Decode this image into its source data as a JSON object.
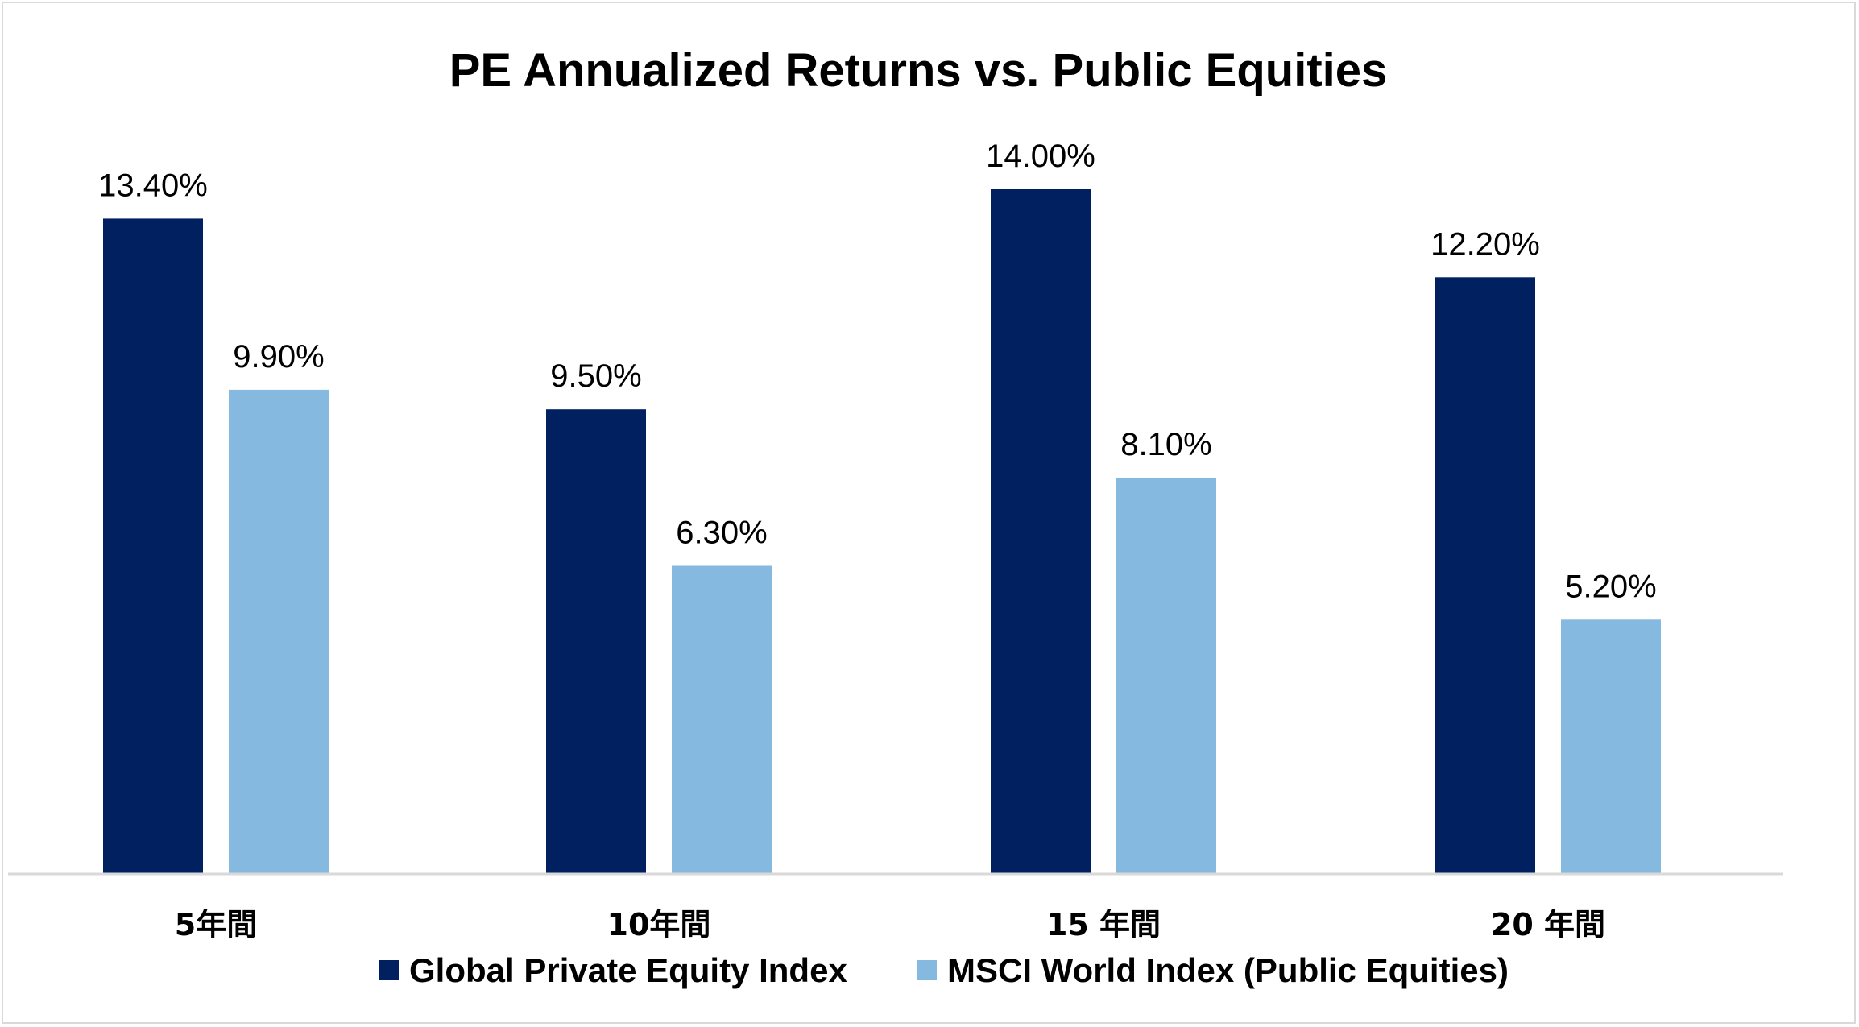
{
  "chart_data": {
    "type": "bar",
    "title": "PE Annualized Returns vs. Public Equities",
    "xlabel": "",
    "ylabel": "",
    "categories": [
      "5年間",
      "10年間",
      "15 年間",
      "20 年間"
    ],
    "series": [
      {
        "name": "Global Private Equity Index",
        "values": [
          13.4,
          9.5,
          14.0,
          12.2
        ],
        "labels": [
          "13.40%",
          "9.50%",
          "14.00%",
          "12.20%"
        ],
        "color": "#002060"
      },
      {
        "name": "MSCI World Index (Public Equities)",
        "values": [
          9.9,
          6.3,
          8.1,
          5.2
        ],
        "labels": [
          "9.90%",
          "6.30%",
          "8.10%",
          "5.20%"
        ],
        "color": "#85B9DF"
      }
    ],
    "ylim": [
      0,
      15
    ],
    "grid": false,
    "legend_position": "bottom",
    "axis_color": "#d9d9d9"
  }
}
